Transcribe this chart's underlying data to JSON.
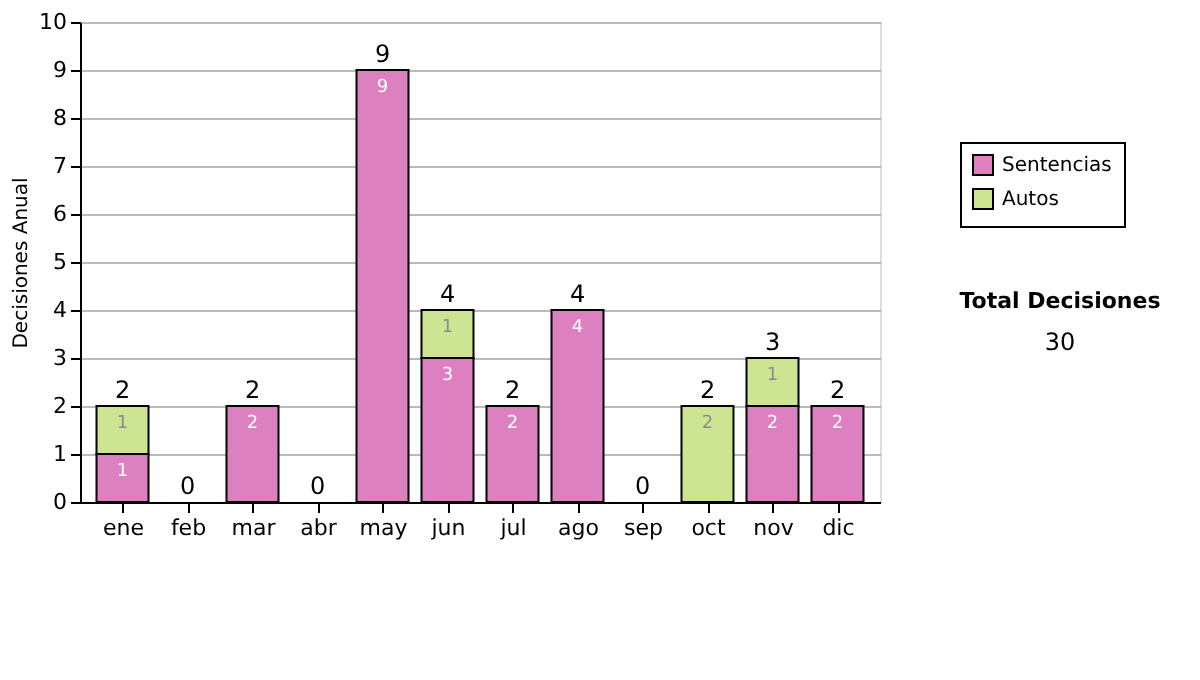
{
  "chart_data": {
    "type": "bar",
    "stacked": true,
    "ylabel": "Decisiones Anual",
    "categories": [
      "ene",
      "feb",
      "mar",
      "abr",
      "may",
      "jun",
      "jul",
      "ago",
      "sep",
      "oct",
      "nov",
      "dic"
    ],
    "series": [
      {
        "name": "Sentencias",
        "color": "#dd80c0",
        "values": [
          1,
          null,
          2,
          null,
          9,
          3,
          2,
          4,
          null,
          null,
          2,
          2
        ],
        "value_labels": [
          "1",
          null,
          "2",
          null,
          "9",
          "3",
          "2",
          "4",
          null,
          null,
          "2",
          "2"
        ]
      },
      {
        "name": "Autos",
        "color": "#cde592",
        "values": [
          1,
          null,
          null,
          null,
          null,
          1,
          null,
          null,
          null,
          2,
          1,
          null
        ],
        "value_labels": [
          "1",
          null,
          null,
          null,
          null,
          "1",
          null,
          null,
          null,
          "2",
          "1",
          null
        ]
      }
    ],
    "totals": [
      "2",
      "0",
      "2",
      "0",
      "9",
      "4",
      "2",
      "4",
      "0",
      "2",
      "3",
      "2"
    ],
    "ylim": [
      0,
      10
    ],
    "yticks": [
      0,
      1,
      2,
      3,
      4,
      5,
      6,
      7,
      8,
      9,
      10
    ],
    "grid": "y",
    "legend": "right",
    "annotations": [
      "Total Decisiones",
      "30"
    ]
  }
}
